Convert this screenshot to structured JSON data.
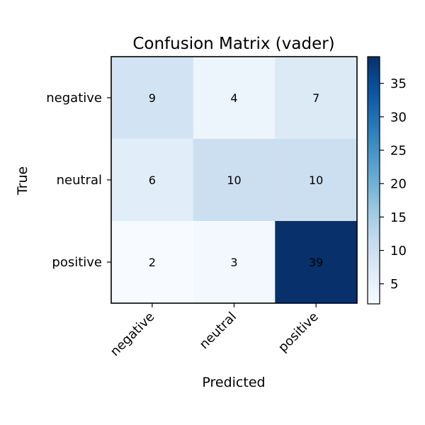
{
  "chart_data": {
    "type": "heatmap",
    "title": "Confusion Matrix (vader)",
    "xlabel": "Predicted",
    "ylabel": "True",
    "x_categories": [
      "negative",
      "neutral",
      "positive"
    ],
    "y_categories": [
      "negative",
      "neutral",
      "positive"
    ],
    "values": [
      [
        9,
        4,
        7
      ],
      [
        6,
        10,
        10
      ],
      [
        2,
        3,
        39
      ]
    ],
    "colormap": "Blues",
    "color_range": [
      2,
      39
    ],
    "colorbar_ticks": [
      5,
      10,
      15,
      20,
      25,
      30,
      35
    ]
  }
}
